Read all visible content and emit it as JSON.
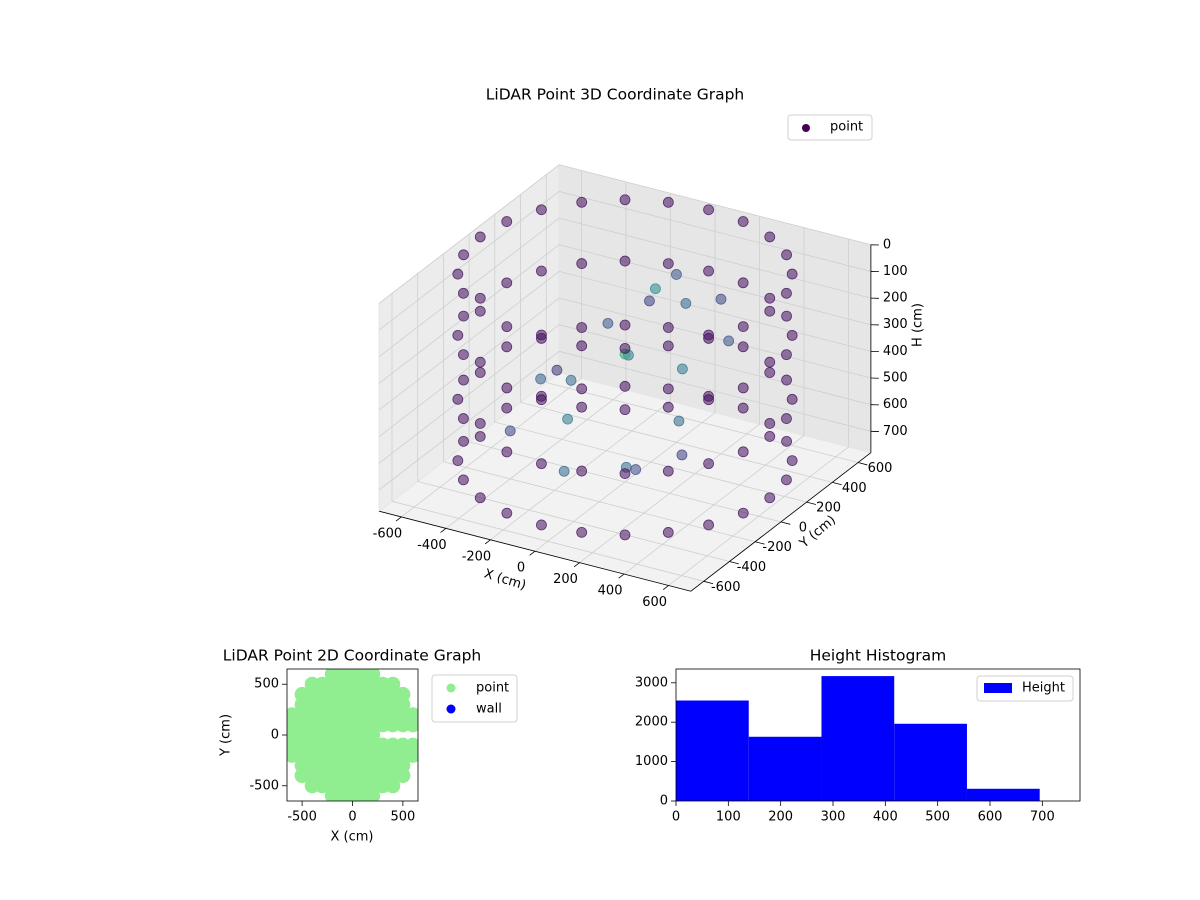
{
  "chart_data": [
    {
      "type": "scatter3d",
      "title": "LiDAR Point 3D Coordinate Graph",
      "xlabel": "X (cm)",
      "ylabel": "Y (cm)",
      "zlabel": "H (cm)",
      "xlim": [
        -700,
        700
      ],
      "ylim": [
        -700,
        700
      ],
      "zlim": [
        0,
        780
      ],
      "z_inverted": true,
      "xticks": [
        -600,
        -400,
        -200,
        0,
        200,
        400,
        600
      ],
      "yticks": [
        -600,
        -400,
        -200,
        0,
        200,
        400,
        600
      ],
      "zticks": [
        0,
        100,
        200,
        300,
        400,
        500,
        600,
        700
      ],
      "colormap": "viridis",
      "legend": "upper right",
      "grid": true,
      "series": [
        {
          "name": "point",
          "color": "#440154",
          "x": [
            650,
            628,
            563,
            460,
            325,
            168,
            0,
            -168,
            -325,
            -460,
            -563,
            -628,
            -650,
            -628,
            -563,
            -460,
            -325,
            -168,
            0,
            168,
            325,
            460,
            563,
            628,
            650,
            628,
            563,
            460,
            325,
            168,
            0,
            -168,
            -325,
            -460,
            -563,
            -628,
            -650,
            -628,
            -563,
            -460,
            -325,
            -168,
            0,
            168,
            325,
            460,
            563,
            628,
            650,
            628,
            563,
            460,
            325,
            168,
            0,
            -168,
            -325,
            -460,
            -563,
            -628,
            -650,
            -628,
            -563,
            -460,
            -325,
            -168,
            0,
            168,
            325,
            460,
            563,
            628,
            650,
            628,
            563,
            460,
            325,
            168,
            0,
            -168,
            -325,
            -460,
            -563,
            -628,
            -650,
            -628,
            -563,
            -460,
            -325,
            -168,
            0,
            168,
            325,
            460,
            563,
            628,
            -300,
            -200,
            -100,
            0,
            100,
            200,
            300,
            -400,
            -250,
            150,
            350,
            0,
            -100,
            250,
            -350,
            50,
            400,
            -150,
            200,
            -450
          ],
          "y": [
            0,
            168,
            325,
            460,
            563,
            628,
            650,
            628,
            563,
            460,
            325,
            168,
            0,
            -168,
            -325,
            -460,
            -563,
            -628,
            -650,
            -628,
            -563,
            -460,
            -325,
            -168,
            0,
            168,
            325,
            460,
            563,
            628,
            650,
            628,
            563,
            460,
            325,
            168,
            0,
            -168,
            -325,
            -460,
            -563,
            -628,
            -650,
            -628,
            -563,
            -460,
            -325,
            -168,
            0,
            168,
            325,
            460,
            563,
            628,
            650,
            628,
            563,
            460,
            325,
            168,
            0,
            -168,
            -325,
            -460,
            -563,
            -628,
            -650,
            -628,
            -563,
            -460,
            -325,
            -168,
            0,
            168,
            325,
            460,
            563,
            628,
            650,
            628,
            563,
            460,
            325,
            168,
            0,
            -168,
            -325,
            -460,
            -563,
            -628,
            -650,
            -628,
            -563,
            -460,
            -325,
            -168,
            100,
            -100,
            200,
            0,
            300,
            100,
            -100,
            -200,
            300,
            -250,
            200,
            400,
            -300,
            -350,
            -50,
            150,
            -250,
            450,
            400,
            250
          ],
          "z": [
            0,
            0,
            0,
            0,
            0,
            0,
            0,
            0,
            0,
            0,
            0,
            0,
            0,
            0,
            0,
            0,
            0,
            0,
            0,
            0,
            0,
            0,
            0,
            0,
            230,
            230,
            230,
            230,
            230,
            230,
            230,
            230,
            230,
            230,
            230,
            230,
            230,
            230,
            230,
            230,
            230,
            230,
            230,
            230,
            230,
            230,
            230,
            230,
            470,
            470,
            470,
            470,
            470,
            470,
            470,
            470,
            470,
            470,
            470,
            470,
            470,
            470,
            470,
            470,
            470,
            470,
            470,
            470,
            470,
            470,
            470,
            470,
            700,
            700,
            700,
            700,
            700,
            700,
            700,
            700,
            700,
            700,
            700,
            700,
            700,
            700,
            700,
            700,
            700,
            700,
            700,
            700,
            700,
            700,
            700,
            700,
            500,
            550,
            400,
            300,
            200,
            350,
            450,
            600,
            350,
            600,
            250,
            150,
            650,
            550,
            450,
            100,
            500,
            300,
            200,
            550
          ]
        }
      ]
    },
    {
      "type": "scatter",
      "title": "LiDAR Point 2D Coordinate Graph",
      "xlabel": "X (cm)",
      "ylabel": "Y (cm)",
      "xlim": [
        -650,
        650
      ],
      "ylim": [
        -650,
        650
      ],
      "xticks": [
        -500,
        0,
        500
      ],
      "yticks": [
        -500,
        0,
        500
      ],
      "legend": "outside right",
      "series": [
        {
          "name": "point",
          "color": "#90ee90",
          "x": [
            -600,
            -600,
            -600,
            -600,
            -600,
            -500,
            -500,
            -500,
            -500,
            -500,
            -500,
            -500,
            -500,
            -500,
            -400,
            -400,
            -400,
            -400,
            -400,
            -400,
            -400,
            -400,
            -400,
            -400,
            -400,
            -300,
            -300,
            -300,
            -300,
            -300,
            -300,
            -300,
            -300,
            -300,
            -300,
            -300,
            -200,
            -200,
            -200,
            -200,
            -200,
            -200,
            -200,
            -200,
            -200,
            -200,
            -200,
            -200,
            -200,
            -100,
            -100,
            -100,
            -100,
            -100,
            -100,
            -100,
            -100,
            -100,
            -100,
            -100,
            -100,
            -100,
            0,
            0,
            0,
            0,
            0,
            0,
            0,
            0,
            0,
            0,
            0,
            0,
            0,
            100,
            100,
            100,
            100,
            100,
            100,
            100,
            100,
            100,
            100,
            100,
            100,
            100,
            200,
            200,
            200,
            200,
            200,
            200,
            200,
            200,
            200,
            200,
            200,
            200,
            200,
            300,
            300,
            300,
            300,
            300,
            300,
            300,
            300,
            300,
            300,
            400,
            400,
            400,
            400,
            400,
            400,
            400,
            400,
            400,
            400,
            500,
            500,
            500,
            500,
            500,
            500,
            500,
            500,
            600,
            600,
            600,
            600
          ],
          "y": [
            -200,
            -100,
            0,
            100,
            200,
            -400,
            -300,
            -200,
            -100,
            0,
            100,
            200,
            300,
            400,
            -500,
            -400,
            -300,
            -200,
            -100,
            0,
            100,
            200,
            300,
            400,
            500,
            -500,
            -400,
            -300,
            -200,
            -100,
            0,
            100,
            200,
            300,
            400,
            500,
            -600,
            -500,
            -400,
            -300,
            -200,
            -100,
            0,
            100,
            200,
            300,
            400,
            500,
            600,
            -600,
            -500,
            -400,
            -300,
            -200,
            -100,
            0,
            100,
            200,
            300,
            400,
            500,
            600,
            -600,
            -500,
            -400,
            -300,
            -200,
            -100,
            0,
            100,
            200,
            300,
            400,
            500,
            600,
            -600,
            -500,
            -400,
            -300,
            -200,
            -100,
            0,
            100,
            200,
            300,
            400,
            500,
            600,
            -600,
            -500,
            -400,
            -300,
            -200,
            -100,
            0,
            100,
            200,
            300,
            400,
            500,
            600,
            -500,
            -400,
            -300,
            -200,
            -100,
            100,
            200,
            300,
            400,
            500,
            -500,
            -400,
            -300,
            -200,
            -100,
            100,
            200,
            300,
            400,
            500,
            -400,
            -300,
            -200,
            -100,
            100,
            200,
            300,
            400,
            -200,
            -100,
            100,
            200
          ]
        },
        {
          "name": "wall",
          "color": "#0000ff",
          "x": [],
          "y": []
        }
      ]
    },
    {
      "type": "histogram",
      "title": "Height Histogram",
      "bins": [
        0,
        139,
        278,
        417,
        556,
        695
      ],
      "values": [
        2550,
        1630,
        3170,
        1960,
        310
      ],
      "name": "Height",
      "color": "#0000ff",
      "xlim": [
        0,
        772
      ],
      "ylim": [
        0,
        3350
      ],
      "xticks": [
        0,
        100,
        200,
        300,
        400,
        500,
        600,
        700
      ],
      "yticks": [
        0,
        1000,
        2000,
        3000
      ],
      "legend": "upper right"
    }
  ]
}
